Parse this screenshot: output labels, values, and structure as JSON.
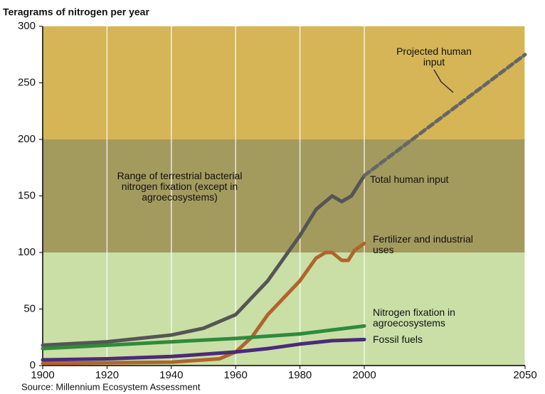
{
  "chart_data": {
    "type": "line",
    "title": "Teragrams of nitrogen per year",
    "source": "Source: Millennium Ecosystem Assessment",
    "annotation": "Range of terrestrial bacterial nitrogen fixation (except in agroecosystems)",
    "xlim": [
      1900,
      2050
    ],
    "xticks": [
      1900,
      1920,
      1940,
      1960,
      1980,
      2000,
      2050
    ],
    "ylim": [
      0,
      300
    ],
    "yticks": [
      0,
      50,
      100,
      150,
      200,
      250,
      300
    ],
    "grid": "x",
    "bands": [
      {
        "range": [
          0,
          100
        ],
        "color": "#c9dfa6"
      },
      {
        "range": [
          100,
          200
        ],
        "color": "#a39a5e"
      },
      {
        "range": [
          200,
          300
        ],
        "color": "#d6b556"
      }
    ],
    "series": [
      {
        "name": "Total human input",
        "color": "#555555",
        "dashed": false,
        "x": [
          1900,
          1920,
          1940,
          1950,
          1960,
          1970,
          1980,
          1985,
          1990,
          1993,
          1996,
          2000
        ],
        "values": [
          18,
          21,
          27,
          33,
          45,
          75,
          115,
          138,
          150,
          145,
          150,
          168
        ]
      },
      {
        "name": "Projected human input",
        "color": "#666666",
        "dashed": true,
        "x": [
          2000,
          2050
        ],
        "values": [
          168,
          275
        ]
      },
      {
        "name": "Fertilizer and industrial uses",
        "color": "#b0642c",
        "dashed": false,
        "x": [
          1900,
          1940,
          1955,
          1960,
          1965,
          1970,
          1980,
          1985,
          1988,
          1990,
          1993,
          1995,
          1997,
          2000
        ],
        "values": [
          2,
          3,
          6,
          12,
          25,
          45,
          75,
          95,
          100,
          100,
          93,
          93,
          102,
          108
        ]
      },
      {
        "name": "Nitrogen fixation in agroecosystems",
        "color": "#2e8b3e",
        "dashed": false,
        "x": [
          1900,
          1920,
          1940,
          1960,
          1980,
          2000
        ],
        "values": [
          15,
          18,
          21,
          24,
          28,
          35
        ]
      },
      {
        "name": "Fossil fuels",
        "color": "#4b2a7a",
        "dashed": false,
        "x": [
          1900,
          1920,
          1940,
          1960,
          1970,
          1980,
          1990,
          2000
        ],
        "values": [
          5,
          6,
          8,
          12,
          15,
          19,
          22,
          23
        ]
      }
    ]
  }
}
